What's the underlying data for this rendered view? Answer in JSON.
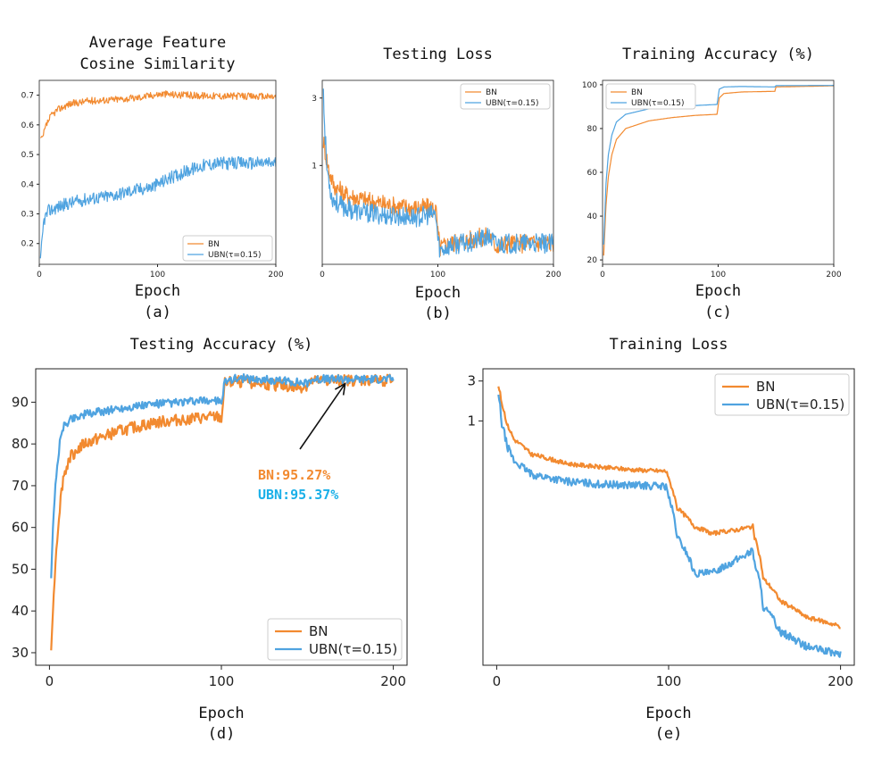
{
  "colors": {
    "bn": "#f28a30",
    "ubn": "#4fa3e0",
    "bn_text": "#f28a30",
    "ubn_text": "#1ab0e8"
  },
  "chart_data": [
    {
      "id": "a",
      "type": "line",
      "title": [
        "Average Feature",
        "Cosine Similarity"
      ],
      "xlabel": "Epoch",
      "caption": "(a)",
      "xlim": [
        0,
        200
      ],
      "ylim": [
        0.13,
        0.75
      ],
      "yscale": "linear",
      "xticks": [
        0,
        100,
        200
      ],
      "yticks": [
        0.2,
        0.3,
        0.4,
        0.5,
        0.6,
        0.7
      ],
      "legend_loc": "lower-right",
      "size": "small",
      "series": [
        {
          "name": "BN",
          "color": "bn",
          "noise": 0.012,
          "points": [
            [
              1,
              0.555
            ],
            [
              3,
              0.56
            ],
            [
              6,
              0.6
            ],
            [
              10,
              0.63
            ],
            [
              15,
              0.65
            ],
            [
              25,
              0.67
            ],
            [
              40,
              0.68
            ],
            [
              60,
              0.685
            ],
            [
              80,
              0.69
            ],
            [
              95,
              0.7
            ],
            [
              105,
              0.705
            ],
            [
              120,
              0.7
            ],
            [
              150,
              0.698
            ],
            [
              200,
              0.695
            ]
          ]
        },
        {
          "name": "UBN(τ=0.15)",
          "color": "ubn",
          "noise": 0.022,
          "points": [
            [
              1,
              0.145
            ],
            [
              2,
              0.2
            ],
            [
              4,
              0.28
            ],
            [
              8,
              0.31
            ],
            [
              20,
              0.33
            ],
            [
              40,
              0.35
            ],
            [
              60,
              0.36
            ],
            [
              80,
              0.38
            ],
            [
              95,
              0.39
            ],
            [
              100,
              0.4
            ],
            [
              110,
              0.42
            ],
            [
              125,
              0.445
            ],
            [
              140,
              0.465
            ],
            [
              150,
              0.47
            ],
            [
              200,
              0.472
            ]
          ]
        }
      ]
    },
    {
      "id": "b",
      "type": "line",
      "title": [
        "Testing Loss"
      ],
      "xlabel": "Epoch",
      "caption": "(b)",
      "xlim": [
        0,
        200
      ],
      "ylim": [
        0.2,
        4.0
      ],
      "yscale": "log",
      "xticks": [
        0,
        100,
        200
      ],
      "yticks": [
        1,
        3
      ],
      "legend_loc": "upper-right",
      "size": "small",
      "series": [
        {
          "name": "BN",
          "color": "bn",
          "noise": 0.07,
          "points": [
            [
              1,
              1.5
            ],
            [
              3,
              1.2
            ],
            [
              6,
              0.9
            ],
            [
              10,
              0.72
            ],
            [
              20,
              0.62
            ],
            [
              40,
              0.56
            ],
            [
              60,
              0.52
            ],
            [
              80,
              0.5
            ],
            [
              98,
              0.5
            ],
            [
              100,
              0.33
            ],
            [
              102,
              0.26
            ],
            [
              110,
              0.28
            ],
            [
              130,
              0.3
            ],
            [
              145,
              0.32
            ],
            [
              150,
              0.27
            ],
            [
              160,
              0.28
            ],
            [
              200,
              0.285
            ]
          ]
        },
        {
          "name": "UBN(τ=0.15)",
          "color": "ubn",
          "noise": 0.07,
          "points": [
            [
              1,
              3.7
            ],
            [
              2,
              1.8
            ],
            [
              4,
              0.95
            ],
            [
              8,
              0.6
            ],
            [
              15,
              0.52
            ],
            [
              30,
              0.47
            ],
            [
              60,
              0.44
            ],
            [
              80,
              0.43
            ],
            [
              98,
              0.45
            ],
            [
              100,
              0.3
            ],
            [
              102,
              0.25
            ],
            [
              110,
              0.27
            ],
            [
              130,
              0.29
            ],
            [
              145,
              0.31
            ],
            [
              150,
              0.28
            ],
            [
              160,
              0.28
            ],
            [
              200,
              0.28
            ]
          ]
        }
      ]
    },
    {
      "id": "c",
      "type": "line",
      "title": [
        "Training Accuracy (%)"
      ],
      "xlabel": "Epoch",
      "caption": "(c)",
      "xlim": [
        0,
        200
      ],
      "ylim": [
        18,
        102
      ],
      "yscale": "linear",
      "xticks": [
        0,
        100,
        200
      ],
      "yticks": [
        20,
        40,
        60,
        80,
        100
      ],
      "legend_loc": "upper-left",
      "size": "small",
      "series": [
        {
          "name": "BN",
          "color": "bn",
          "noise": 0.0,
          "points": [
            [
              1,
              22
            ],
            [
              3,
              45
            ],
            [
              5,
              58
            ],
            [
              8,
              68
            ],
            [
              12,
              75
            ],
            [
              20,
              80
            ],
            [
              40,
              83.5
            ],
            [
              60,
              85
            ],
            [
              80,
              86
            ],
            [
              99,
              86.5
            ],
            [
              101,
              94
            ],
            [
              105,
              96
            ],
            [
              120,
              96.7
            ],
            [
              149,
              97
            ],
            [
              150,
              99
            ],
            [
              200,
              99.5
            ]
          ]
        },
        {
          "name": "UBN(τ=0.15)",
          "color": "ubn",
          "noise": 0.0,
          "points": [
            [
              1,
              27
            ],
            [
              3,
              55
            ],
            [
              5,
              68
            ],
            [
              8,
              77
            ],
            [
              12,
              83
            ],
            [
              20,
              86.5
            ],
            [
              40,
              89
            ],
            [
              60,
              90
            ],
            [
              80,
              90.5
            ],
            [
              99,
              91
            ],
            [
              101,
              98
            ],
            [
              105,
              99
            ],
            [
              120,
              99.2
            ],
            [
              149,
              99
            ],
            [
              150,
              99.6
            ],
            [
              200,
              99.7
            ]
          ]
        }
      ]
    },
    {
      "id": "d",
      "type": "line",
      "title": [
        "Testing Accuracy (%)"
      ],
      "xlabel": "Epoch",
      "caption": "(d)",
      "xlim": [
        -8,
        208
      ],
      "ylim": [
        27,
        98
      ],
      "yscale": "linear",
      "xticks": [
        0,
        100,
        200
      ],
      "yticks": [
        30,
        40,
        50,
        60,
        70,
        80,
        90
      ],
      "legend_loc": "lower-right",
      "size": "large",
      "annotations": [
        {
          "text": "BN:95.27%",
          "color": "bn_text"
        },
        {
          "text": "UBN:95.37%",
          "color": "ubn_text"
        }
      ],
      "arrow_target": [
        172,
        95.3
      ],
      "series": [
        {
          "name": "BN",
          "color": "bn",
          "noise": 1.4,
          "points": [
            [
              1,
              31
            ],
            [
              2,
              40
            ],
            [
              4,
              55
            ],
            [
              6,
              65
            ],
            [
              8,
              72
            ],
            [
              12,
              77
            ],
            [
              20,
              80
            ],
            [
              40,
              83
            ],
            [
              60,
              85
            ],
            [
              80,
              86
            ],
            [
              98,
              86.5
            ],
            [
              100,
              86
            ],
            [
              102,
              94.5
            ],
            [
              110,
              95
            ],
            [
              130,
              94.2
            ],
            [
              145,
              93.5
            ],
            [
              150,
              94
            ],
            [
              152,
              95
            ],
            [
              170,
              95.2
            ],
            [
              200,
              95.3
            ]
          ]
        },
        {
          "name": "UBN(τ=0.15)",
          "color": "ubn",
          "noise": 1.0,
          "points": [
            [
              1,
              48
            ],
            [
              2,
              60
            ],
            [
              4,
              73
            ],
            [
              6,
              80
            ],
            [
              8,
              84
            ],
            [
              12,
              86
            ],
            [
              20,
              87
            ],
            [
              40,
              88.5
            ],
            [
              60,
              89.5
            ],
            [
              80,
              90
            ],
            [
              98,
              90.5
            ],
            [
              100,
              89
            ],
            [
              102,
              95.3
            ],
            [
              110,
              95.8
            ],
            [
              130,
              95.2
            ],
            [
              145,
              94.8
            ],
            [
              150,
              94.5
            ],
            [
              152,
              95.5
            ],
            [
              170,
              95.5
            ],
            [
              200,
              95.6
            ]
          ]
        }
      ]
    },
    {
      "id": "e",
      "type": "line",
      "title": [
        "Training Loss"
      ],
      "xlabel": "Epoch",
      "caption": "(e)",
      "xlim": [
        -8,
        208
      ],
      "ylim": [
        0.0012,
        4.2
      ],
      "yscale": "log",
      "xticks": [
        0,
        100,
        200
      ],
      "yticks": [
        1,
        3
      ],
      "legend_loc": "upper-right",
      "size": "large",
      "series": [
        {
          "name": "BN",
          "color": "bn",
          "noise": 0.025,
          "points": [
            [
              1,
              2.6
            ],
            [
              3,
              1.6
            ],
            [
              6,
              0.9
            ],
            [
              10,
              0.6
            ],
            [
              20,
              0.4
            ],
            [
              40,
              0.31
            ],
            [
              60,
              0.28
            ],
            [
              80,
              0.26
            ],
            [
              99,
              0.25
            ],
            [
              100,
              0.2
            ],
            [
              105,
              0.09
            ],
            [
              115,
              0.055
            ],
            [
              125,
              0.045
            ],
            [
              140,
              0.05
            ],
            [
              149,
              0.055
            ],
            [
              150,
              0.04
            ],
            [
              155,
              0.013
            ],
            [
              165,
              0.007
            ],
            [
              180,
              0.0045
            ],
            [
              200,
              0.0035
            ]
          ]
        },
        {
          "name": "UBN(τ=0.15)",
          "color": "ubn",
          "noise": 0.045,
          "points": [
            [
              1,
              2.0
            ],
            [
              3,
              0.9
            ],
            [
              6,
              0.5
            ],
            [
              10,
              0.33
            ],
            [
              20,
              0.23
            ],
            [
              40,
              0.19
            ],
            [
              60,
              0.175
            ],
            [
              80,
              0.17
            ],
            [
              99,
              0.165
            ],
            [
              100,
              0.12
            ],
            [
              105,
              0.04
            ],
            [
              115,
              0.015
            ],
            [
              125,
              0.015
            ],
            [
              140,
              0.022
            ],
            [
              149,
              0.028
            ],
            [
              150,
              0.02
            ],
            [
              155,
              0.006
            ],
            [
              165,
              0.003
            ],
            [
              180,
              0.002
            ],
            [
              200,
              0.0016
            ]
          ]
        }
      ]
    }
  ]
}
